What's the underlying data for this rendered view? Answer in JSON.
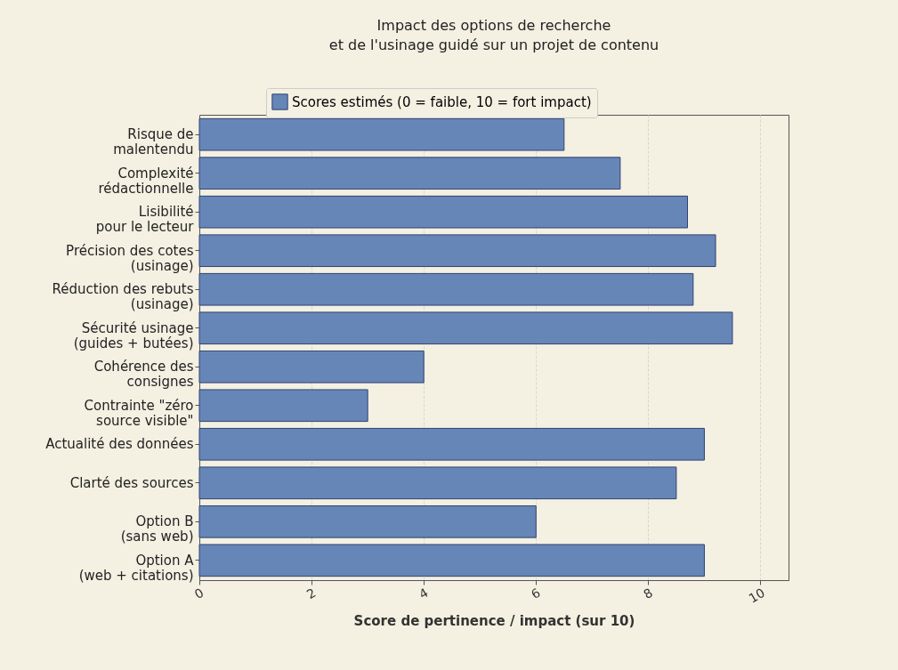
{
  "chart_data": {
    "type": "bar",
    "orientation": "horizontal",
    "title": "Impact des options de recherche\net de l'usinage guidé sur un projet de contenu",
    "xlabel": "Score de pertinence / impact (sur 10)",
    "categories": [
      "Risque de\nmalentendu",
      "Complexité\nrédactionnelle",
      "Lisibilité\npour le lecteur",
      "Précision des cotes\n(usinage)",
      "Réduction des rebuts\n(usinage)",
      "Sécurité usinage\n(guides + butées)",
      "Cohérence des\nconsignes",
      "Contrainte \"zéro\nsource visible\"",
      "Actualité des données",
      "Clarté des sources",
      "Option B\n(sans web)",
      "Option A\n(web + citations)"
    ],
    "series": [
      {
        "name": "Scores estimés (0 = faible, 10 = fort impact)",
        "color": "#6786b8",
        "values": [
          6.5,
          7.5,
          8.7,
          9.2,
          8.8,
          9.5,
          4,
          3,
          9,
          8.5,
          6,
          9
        ]
      }
    ],
    "xlim": [
      0,
      10.5
    ],
    "xticks": [
      0,
      2,
      4,
      6,
      8,
      10
    ],
    "grid": "x",
    "legend": "top"
  }
}
